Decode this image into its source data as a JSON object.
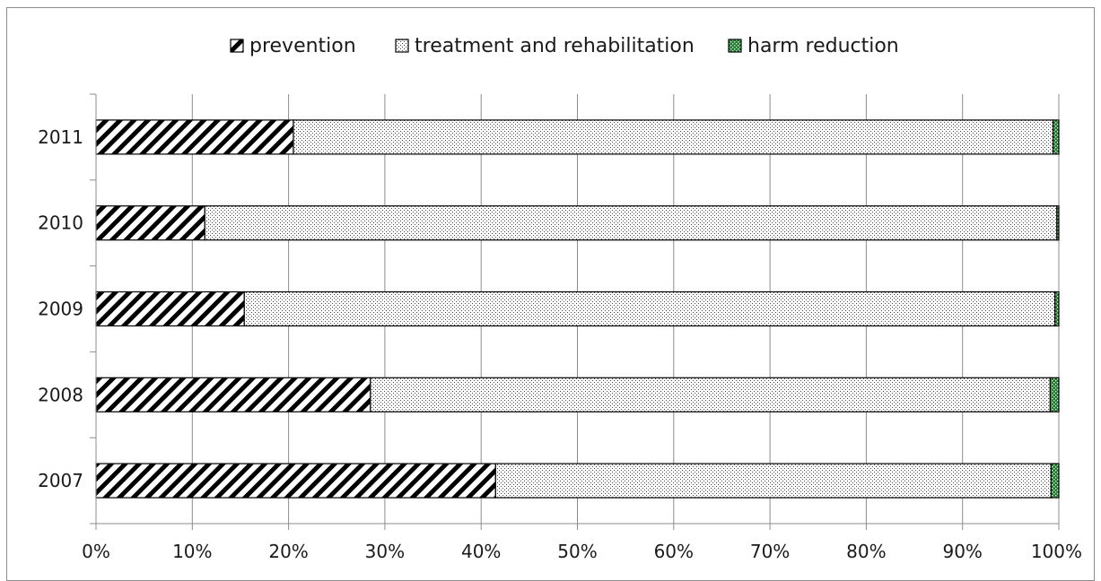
{
  "chart_data": {
    "type": "bar",
    "orientation": "horizontal",
    "stacked": "percent",
    "title": "",
    "xlabel": "",
    "ylabel": "",
    "xlim": [
      0,
      100
    ],
    "x_ticks": [
      "0%",
      "10%",
      "20%",
      "30%",
      "40%",
      "50%",
      "60%",
      "70%",
      "80%",
      "90%",
      "100%"
    ],
    "categories": [
      "2007",
      "2008",
      "2009",
      "2010",
      "2011"
    ],
    "series": [
      {
        "name": "prevention",
        "pattern": "diagonal-hatch",
        "values": [
          41.5,
          28.5,
          15.4,
          11.3,
          20.5
        ]
      },
      {
        "name": "treatment and rehabilitation",
        "pattern": "dots",
        "values": [
          57.7,
          70.6,
          84.2,
          88.5,
          78.9
        ]
      },
      {
        "name": "harm reduction",
        "pattern": "green-dots",
        "values": [
          0.8,
          0.9,
          0.4,
          0.2,
          0.6
        ]
      }
    ],
    "grid": true,
    "legend_position": "top"
  }
}
